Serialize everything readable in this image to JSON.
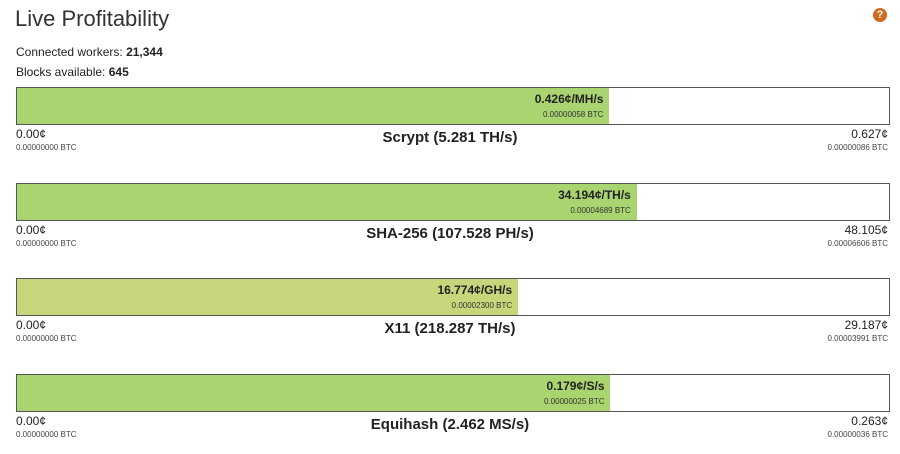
{
  "header": {
    "title": "Live Profitability",
    "help": "?"
  },
  "stats": [
    {
      "label": "Connected workers:",
      "value": "21,344"
    },
    {
      "label": "Blocks available:",
      "value": "645"
    }
  ],
  "algorithms": [
    {
      "name": "Scrypt (5.281 TH/s)",
      "value": 0.426,
      "value_label": "0.426¢/MH/s",
      "btc": "0.00000058 BTC",
      "color": "#a9d46f",
      "min": 0,
      "min_label": "0.00¢",
      "min_btc": "0.00000000 BTC",
      "max": 0.627,
      "max_label": "0.627¢",
      "max_btc": "0.00000086 BTC"
    },
    {
      "name": "SHA-256 (107.528 PH/s)",
      "value": 34.194,
      "value_label": "34.194¢/TH/s",
      "btc": "0.00004689 BTC",
      "color": "#a9d46f",
      "min": 0,
      "min_label": "0.00¢",
      "min_btc": "0.00000000 BTC",
      "max": 48.105,
      "max_label": "48.105¢",
      "max_btc": "0.00006606 BTC"
    },
    {
      "name": "X11 (218.287 TH/s)",
      "value": 16.774,
      "value_label": "16.774¢/GH/s",
      "btc": "0.00002300 BTC",
      "color": "#c6d67a",
      "min": 0,
      "min_label": "0.00¢",
      "min_btc": "0.00000000 BTC",
      "max": 29.187,
      "max_label": "29.187¢",
      "max_btc": "0.00003991 BTC"
    },
    {
      "name": "Equihash (2.462 MS/s)",
      "value": 0.179,
      "value_label": "0.179¢/S/s",
      "btc": "0.00000025 BTC",
      "color": "#a9d46f",
      "min": 0,
      "min_label": "0.00¢",
      "min_btc": "0.00000000 BTC",
      "max": 0.263,
      "max_label": "0.263¢",
      "max_btc": "0.00000036 BTC"
    }
  ]
}
